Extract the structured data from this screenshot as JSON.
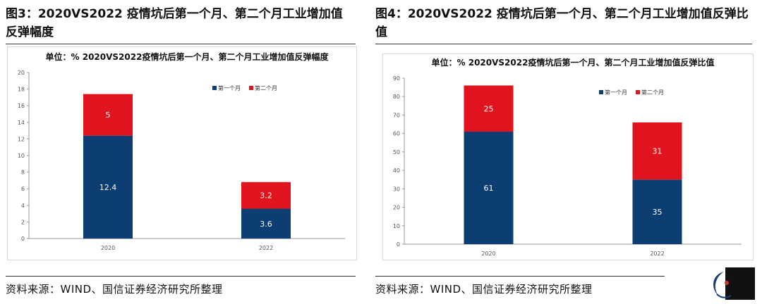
{
  "figures": [
    {
      "title": "图3：2020VS2022 疫情坑后第一个月、第二个月工业增加值反弹幅度",
      "source": "资料来源：WIND、国信证券经济研究所整理"
    },
    {
      "title": "图4：2020VS2022 疫情坑后第一个月、第二个月工业增加值反弹比值",
      "source": "资料来源：WIND、国信证券经济研究所整理"
    }
  ],
  "colors": {
    "first_month": "#0d3e73",
    "second_month": "#e0141e"
  },
  "chart_data": [
    {
      "type": "bar",
      "stacked": true,
      "title": "单位：%   2020VS2022疫情坑后第一个月、第二个月工业增加值反弹幅度",
      "categories": [
        "2020",
        "2022"
      ],
      "series": [
        {
          "name": "第一个月",
          "values": [
            12.4,
            3.6
          ],
          "labels": [
            "12.4",
            "3.6"
          ]
        },
        {
          "name": "第二个月",
          "values": [
            5,
            3.2
          ],
          "labels": [
            "5",
            "3.2"
          ]
        }
      ],
      "ylim": [
        0,
        20
      ],
      "yticks": [
        0,
        2,
        4,
        6,
        8,
        10,
        12,
        14,
        16,
        18,
        20
      ],
      "grid": false,
      "legend": "top-right"
    },
    {
      "type": "bar",
      "stacked": true,
      "title": "单位：%   2020VS2022疫情坑后第一个月、第二个月工业增加值反弹比值",
      "categories": [
        "2020",
        "2022"
      ],
      "series": [
        {
          "name": "第一个月",
          "values": [
            61,
            35
          ],
          "labels": [
            "61",
            "35"
          ]
        },
        {
          "name": "第二个月",
          "values": [
            25,
            31
          ],
          "labels": [
            "25",
            "31"
          ]
        }
      ],
      "ylim": [
        0,
        90
      ],
      "yticks": [
        0,
        10,
        20,
        30,
        40,
        50,
        60,
        70,
        80,
        90
      ],
      "grid": false,
      "legend": "top-right"
    }
  ]
}
